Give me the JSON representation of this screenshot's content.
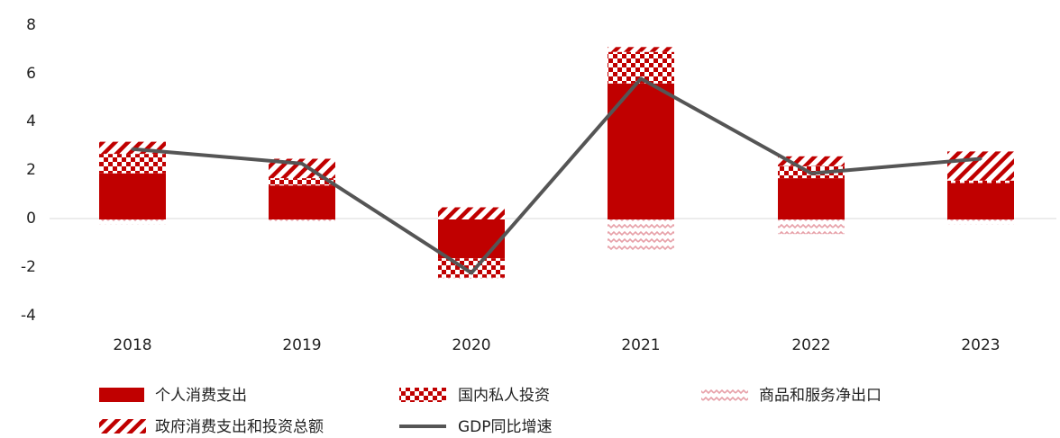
{
  "chart_data": {
    "type": "bar",
    "stacked": true,
    "categories": [
      "2018",
      "2019",
      "2020",
      "2021",
      "2022",
      "2023"
    ],
    "ylim": [
      -4,
      8
    ],
    "yticks": [
      -4,
      -2,
      0,
      2,
      4,
      6,
      8
    ],
    "grid": false,
    "legend_position": "bottom",
    "series": [
      {
        "name": "个人消费支出",
        "kind": "bar",
        "pattern": "solid",
        "color": "#c00000",
        "values": [
          1.9,
          1.4,
          -1.6,
          5.6,
          1.7,
          1.5
        ]
      },
      {
        "name": "国内私人投资",
        "kind": "bar",
        "pattern": "checker",
        "color": "#c00000",
        "values": [
          0.8,
          0.3,
          -0.8,
          1.3,
          0.5,
          0.1
        ]
      },
      {
        "name": "商品和服务净出口",
        "kind": "bar",
        "pattern": "wave",
        "color": "#e7a0a8",
        "values": [
          -0.2,
          -0.1,
          -0.1,
          -1.3,
          -0.6,
          -0.2
        ]
      },
      {
        "name": "政府消费支出和投资总额",
        "kind": "bar",
        "pattern": "diagonal",
        "color": "#c00000",
        "values": [
          0.5,
          0.8,
          0.5,
          0.2,
          0.4,
          1.2
        ]
      },
      {
        "name": "GDP同比增速",
        "kind": "line",
        "color": "#555555",
        "values": [
          2.9,
          2.3,
          -2.2,
          5.8,
          1.9,
          2.5
        ]
      }
    ]
  }
}
